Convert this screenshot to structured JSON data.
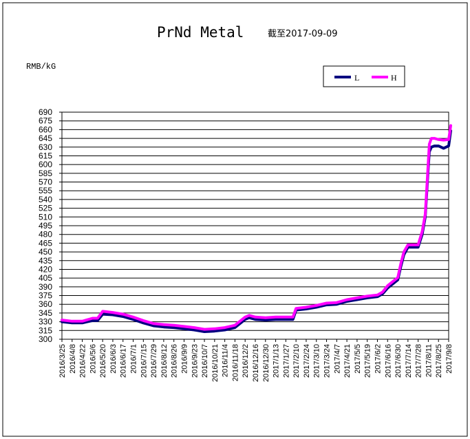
{
  "chart_data": {
    "type": "line",
    "title": "PrNd Metal",
    "subtitle": "截至2017-09-09",
    "ylabel": "RMB/kG",
    "xlabel": "",
    "ylim": [
      300,
      690
    ],
    "y_ticks": [
      "300",
      "315",
      "330",
      "345",
      "360",
      "375",
      "390",
      "405",
      "420",
      "435",
      "450",
      "465",
      "480",
      "495",
      "510",
      "525",
      "540",
      "555",
      "570",
      "585",
      "600",
      "615",
      "630",
      "645",
      "660",
      "675",
      "690"
    ],
    "categories": [
      "2016/3/25",
      "2016/4/8",
      "2016/4/22",
      "2016/5/6",
      "2016/5/20",
      "2016/6/3",
      "2016/6/17",
      "2016/7/1",
      "2016/7/15",
      "2016/7/29",
      "2016/8/12",
      "2016/8/26",
      "2016/9/9",
      "2016/9/23",
      "2016/10/7",
      "2016/10/21",
      "2016/11/4",
      "2016/11/18",
      "2016/12/2",
      "2016/12/16",
      "2016/12/30",
      "2017/1/13",
      "2017/1/27",
      "2017/2/10",
      "2017/2/24",
      "2017/3/10",
      "2017/3/24",
      "2017/4/7",
      "2017/4/21",
      "2017/5/5",
      "2017/5/19",
      "2017/6/2",
      "2017/6/16",
      "2017/6/30",
      "2017/7/14",
      "2017/7/28",
      "2017/8/11",
      "2017/8/25",
      "2017/9/8"
    ],
    "grid": true,
    "legend_position": "top-right",
    "series": [
      {
        "name": "L",
        "color": "#000080",
        "x": [
          0,
          1,
          2,
          3,
          3.1,
          3.5,
          4,
          5,
          6,
          7,
          8,
          9,
          10,
          11,
          12,
          13,
          14,
          15,
          16,
          17,
          18,
          18.4,
          19,
          20,
          21,
          22,
          22.7,
          23,
          24,
          25,
          26,
          27,
          28,
          29,
          30,
          31,
          31.5,
          32,
          33,
          33.3,
          33.6,
          34,
          35,
          35.4,
          35.7,
          36,
          36.1,
          36.3,
          36.6,
          37,
          37.5,
          38,
          38.2
        ],
        "values": [
          330,
          328,
          328,
          332,
          332,
          332,
          343,
          342,
          339,
          334,
          328,
          323,
          321,
          320,
          318,
          316,
          313,
          314,
          316,
          320,
          334,
          337,
          334,
          333,
          334,
          334,
          334,
          350,
          352,
          355,
          359,
          360,
          365,
          368,
          371,
          373,
          378,
          388,
          402,
          425,
          445,
          458,
          458,
          480,
          510,
          595,
          622,
          630,
          632,
          632,
          628,
          632,
          658
        ]
      },
      {
        "name": "H",
        "color": "#ff00ff",
        "x": [
          0,
          1,
          2,
          3,
          3.1,
          3.5,
          4,
          5,
          6,
          7,
          8,
          9,
          10,
          11,
          12,
          13,
          14,
          15,
          16,
          17,
          18,
          18.4,
          19,
          20,
          21,
          22,
          22.7,
          23,
          24,
          25,
          26,
          27,
          28,
          29,
          30,
          31,
          31.5,
          32,
          33,
          33.3,
          33.6,
          34,
          35,
          35.4,
          35.7,
          36,
          36.1,
          36.3,
          36.6,
          37,
          37.5,
          38,
          38.2
        ],
        "values": [
          333,
          331,
          331,
          336,
          336,
          336,
          348,
          346,
          343,
          338,
          332,
          327,
          325,
          324,
          322,
          320,
          317,
          318,
          320,
          324,
          338,
          341,
          338,
          337,
          338,
          338,
          338,
          353,
          355,
          358,
          362,
          363,
          368,
          371,
          374,
          376,
          381,
          392,
          406,
          430,
          450,
          462,
          462,
          485,
          515,
          605,
          635,
          645,
          645,
          643,
          642,
          643,
          667
        ]
      }
    ]
  }
}
